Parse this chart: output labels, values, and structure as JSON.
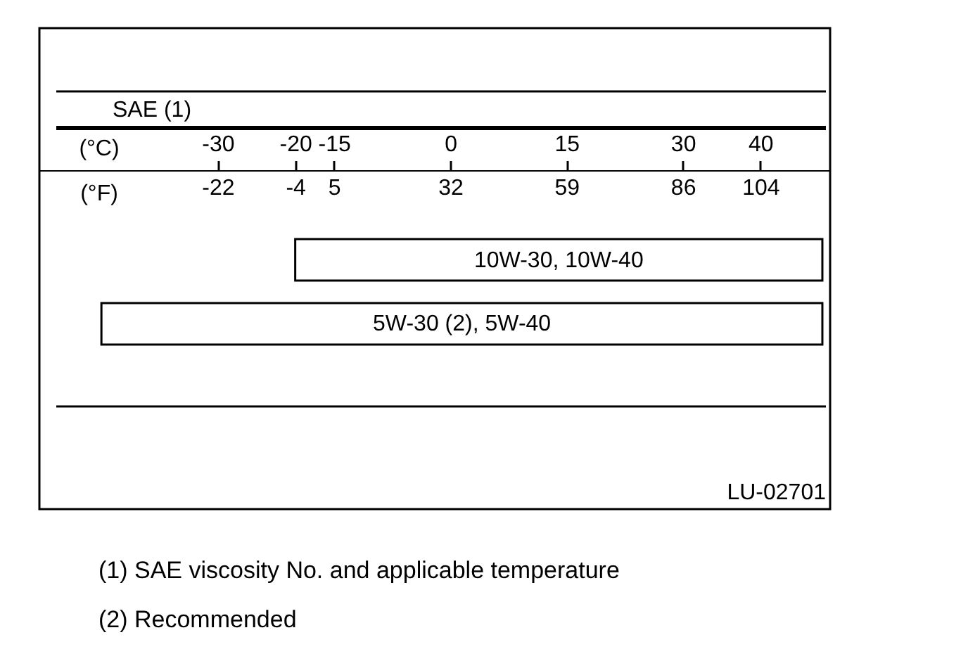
{
  "chart_data": {
    "type": "bar",
    "orientation": "horizontal",
    "title": "SAE (1)",
    "categories": [
      "10W-30, 10W-40",
      "5W-30 (2), 5W-40"
    ],
    "base": [
      -20,
      -45
    ],
    "values": [
      68,
      93
    ],
    "color": "#ffffff",
    "xlabel": "(°C)",
    "x2label": "(°F)",
    "xlim": [
      -53,
      49
    ],
    "xticks": [
      -30,
      -20,
      -15,
      0,
      15,
      30,
      40
    ],
    "x2lim": [
      -63.4,
      120.2
    ],
    "x2ticks": [
      -22,
      -4,
      5,
      32,
      59,
      86,
      104
    ],
    "tick_labels": "x",
    "grid": false,
    "annotations": [
      "LU-02701",
      "(1)   SAE viscosity No. and applicable temperature",
      "(2)   Recommended"
    ]
  }
}
